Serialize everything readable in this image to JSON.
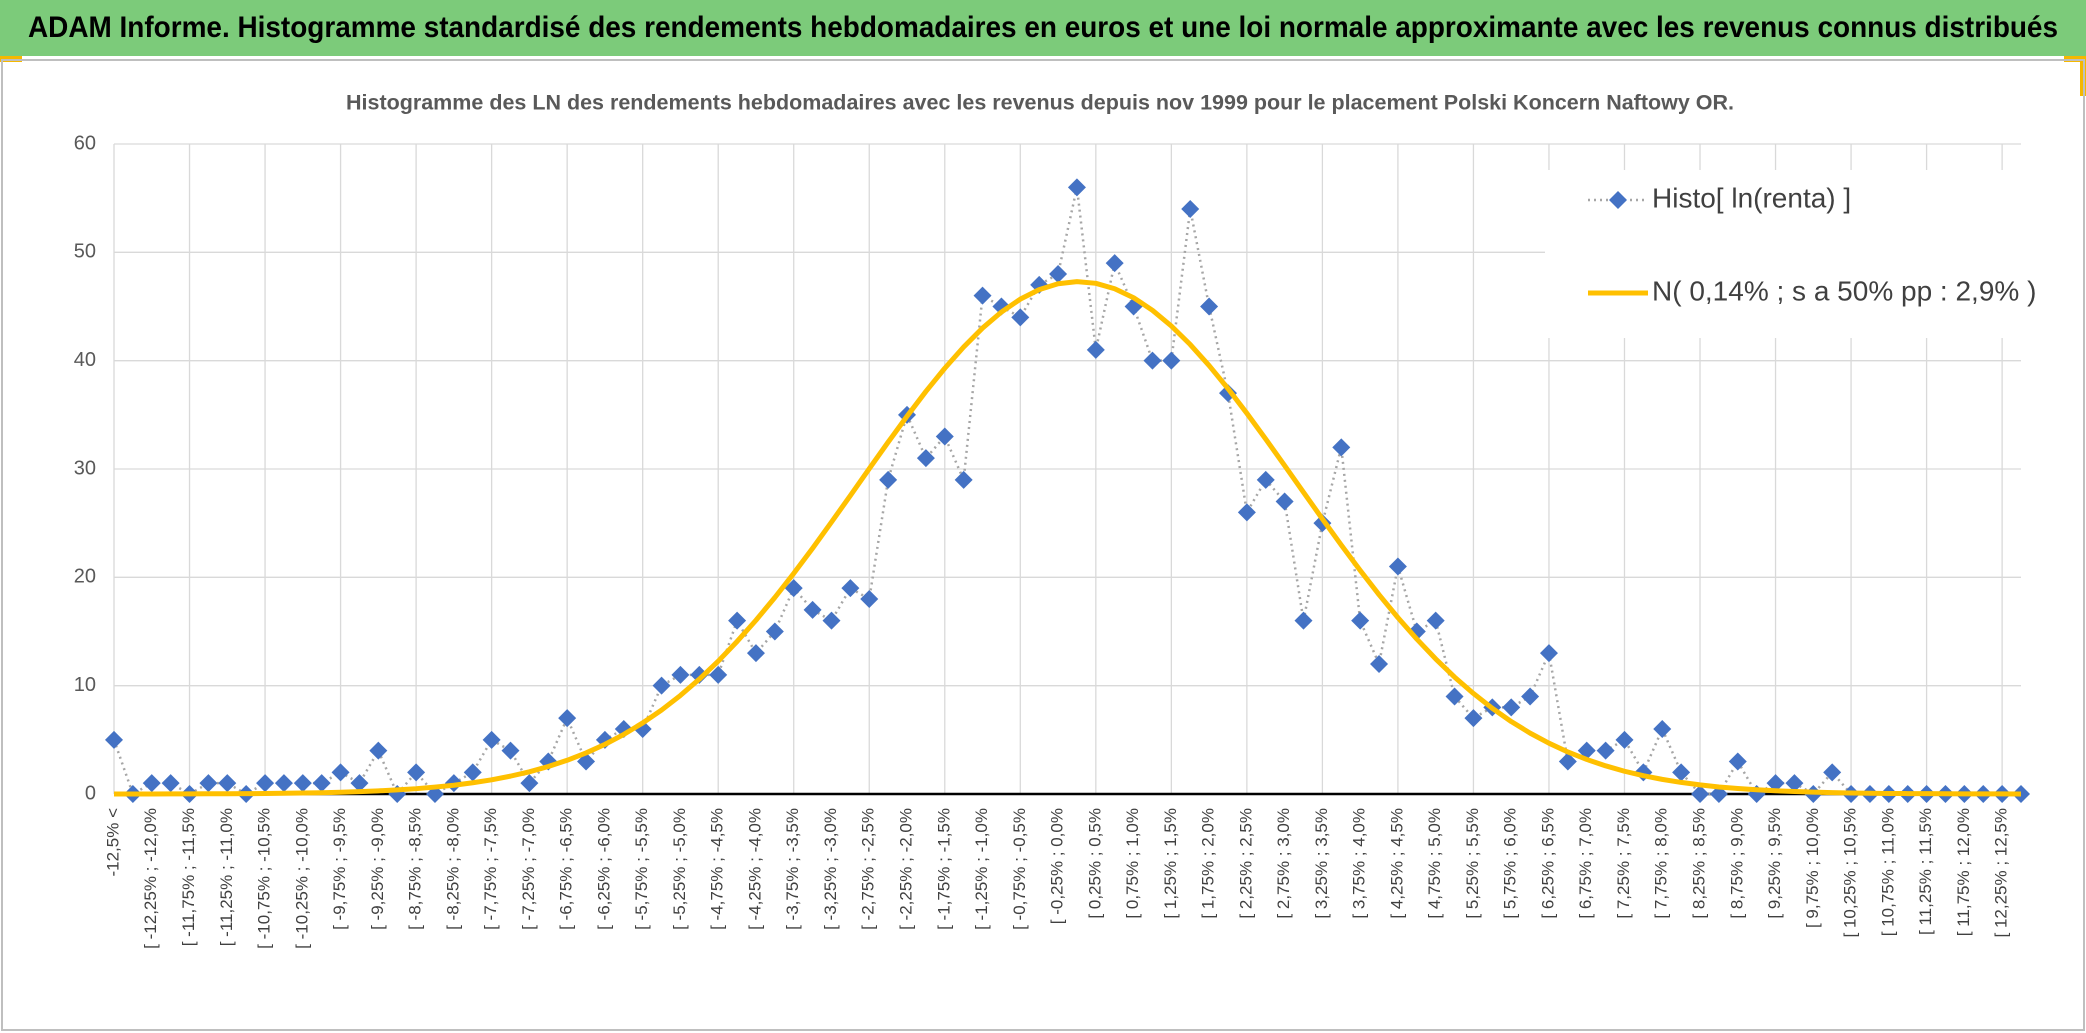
{
  "header": {
    "title": "ADAM Informe. Histogramme standardisé des rendements hebdomadaires en euros et une loi normale approximante avec les revenus connus distribués"
  },
  "chart_data": {
    "type": "line",
    "title": "Histogramme des LN des rendements hebdomadaires avec les revenus depuis nov 1999 pour le placement Polski Koncern Naftowy OR.",
    "categories": [
      "-12,5% <",
      null,
      "[ -12,25% ; -12,0%",
      null,
      "[ -11,75% ; -11,5%",
      null,
      "[ -11,25% ; -11,0%",
      null,
      "[ -10,75% ; -10,5%",
      null,
      "[ -10,25% ; -10,0%",
      null,
      "[ -9,75% ; -9,5%",
      null,
      "[ -9,25% ; -9,0%",
      null,
      "[ -8,75% ; -8,5%",
      null,
      "[ -8,25% ; -8,0%",
      null,
      "[ -7,75% ; -7,5%",
      null,
      "[ -7,25% ; -7,0%",
      null,
      "[ -6,75% ; -6,5%",
      null,
      "[ -6,25% ; -6,0%",
      null,
      "[ -5,75% ; -5,5%",
      null,
      "[ -5,25% ; -5,0%",
      null,
      "[ -4,75% ; -4,5%",
      null,
      "[ -4,25% ; -4,0%",
      null,
      "[ -3,75% ; -3,5%",
      null,
      "[ -3,25% ; -3,0%",
      null,
      "[ -2,75% ; -2,5%",
      null,
      "[ -2,25% ; -2,0%",
      null,
      "[ -1,75% ; -1,5%",
      null,
      "[ -1,25% ; -1,0%",
      null,
      "[ -0,75% ; -0,5%",
      null,
      "[ -0,25% ; 0,0%",
      null,
      "[ 0,25% ; 0,5%",
      null,
      "[ 0,75% ; 1,0%",
      null,
      "[ 1,25% ; 1,5%",
      null,
      "[ 1,75% ; 2,0%",
      null,
      "[ 2,25% ; 2,5%",
      null,
      "[ 2,75% ; 3,0%",
      null,
      "[ 3,25% ; 3,5%",
      null,
      "[ 3,75% ; 4,0%",
      null,
      "[ 4,25% ; 4,5%",
      null,
      "[ 4,75% ; 5,0%",
      null,
      "[ 5,25% ; 5,5%",
      null,
      "[ 5,75% ; 6,0%",
      null,
      "[ 6,25% ; 6,5%",
      null,
      "[ 6,75% ; 7,0%",
      null,
      "[ 7,25% ; 7,5%",
      null,
      "[ 7,75% ; 8,0%",
      null,
      "[ 8,25% ; 8,5%",
      null,
      "[ 8,75% ; 9,0%",
      null,
      "[ 9,25% ; 9,5%",
      null,
      "[ 9,75% ; 10,0%",
      null,
      "[ 10,25% ; 10,5%",
      null,
      "[ 10,75% ; 11,0%",
      null,
      "[ 11,25% ; 11,5%",
      null,
      "[ 11,75% ; 12,0%",
      null,
      "[ 12,25% ; 12,5%",
      null
    ],
    "series": [
      {
        "name": "Histo[ ln(renta) ]",
        "color": "#4472c4",
        "line_color": "#a6a6a6",
        "marker": "diamond",
        "values": [
          5,
          0,
          1,
          1,
          0,
          1,
          1,
          0,
          1,
          1,
          1,
          1,
          2,
          1,
          4,
          0,
          2,
          0,
          1,
          2,
          5,
          4,
          1,
          3,
          7,
          3,
          5,
          6,
          6,
          10,
          11,
          11,
          11,
          16,
          13,
          15,
          19,
          17,
          16,
          19,
          18,
          29,
          35,
          31,
          33,
          29,
          46,
          45,
          44,
          47,
          48,
          56,
          41,
          49,
          45,
          40,
          40,
          54,
          45,
          37,
          26,
          29,
          27,
          16,
          25,
          32,
          16,
          12,
          21,
          15,
          16,
          9,
          7,
          8,
          8,
          9,
          13,
          3,
          4,
          4,
          5,
          2,
          6,
          2,
          0,
          0,
          3,
          0,
          1,
          1,
          0,
          2,
          0,
          0,
          0,
          0,
          0,
          0,
          0,
          0,
          0,
          0
        ]
      },
      {
        "name": "N( 0,14% ; s a 50% pp : 2,9% )",
        "color": "#ffc000",
        "marker": "none",
        "values": [
          0,
          0,
          0,
          0.01,
          0.01,
          0.02,
          0.02,
          0.03,
          0.05,
          0.07,
          0.09,
          0.12,
          0.16,
          0.22,
          0.29,
          0.38,
          0.49,
          0.64,
          0.81,
          1.04,
          1.31,
          1.65,
          2.05,
          2.54,
          3.11,
          3.79,
          4.58,
          5.5,
          6.56,
          7.75,
          9.1,
          10.6,
          12.26,
          14.08,
          16.04,
          18.14,
          20.36,
          22.69,
          25.1,
          27.55,
          30.03,
          32.48,
          34.87,
          37.16,
          39.3,
          41.26,
          43.01,
          44.49,
          45.68,
          46.56,
          47.1,
          47.3,
          47.14,
          46.64,
          45.81,
          44.65,
          43.2,
          41.49,
          39.55,
          37.42,
          35.14,
          32.76,
          30.32,
          27.85,
          25.39,
          22.98,
          20.64,
          18.4,
          16.28,
          14.3,
          12.47,
          10.79,
          9.28,
          7.91,
          6.69,
          5.62,
          4.69,
          3.88,
          3.19,
          2.6,
          2.1,
          1.69,
          1.35,
          1.07,
          0.84,
          0.65,
          0.51,
          0.39,
          0.3,
          0.23,
          0.17,
          0.13,
          0.09,
          0.07,
          0.05,
          0.04,
          0.03,
          0.02,
          0.01,
          0.01,
          0.01,
          0
        ]
      }
    ],
    "ylim": [
      0,
      60
    ],
    "yticks": [
      0,
      10,
      20,
      30,
      40,
      50,
      60
    ],
    "grid": true,
    "legend": "top-right"
  }
}
